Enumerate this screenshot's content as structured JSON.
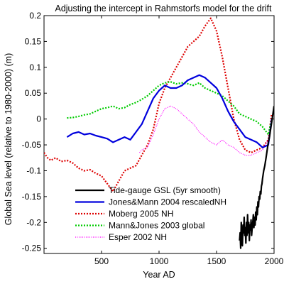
{
  "chart_data": {
    "type": "line",
    "title": "Adjusting the intercept in Rahmstorfs model for the drift",
    "xlabel": "Year AD",
    "ylabel": "Global Sea level (relative to 1980-2000) (m)",
    "xlim": [
      0,
      2000
    ],
    "ylim": [
      -0.26,
      0.2
    ],
    "xticks": [
      500,
      1000,
      1500,
      2000
    ],
    "xtick_labels": [
      "500",
      "1000",
      "1500",
      "2000"
    ],
    "yticks": [
      -0.25,
      -0.2,
      -0.15,
      -0.1,
      -0.05,
      0,
      0.05,
      0.1,
      0.15,
      0.2
    ],
    "ytick_labels": [
      "-0.25",
      "-0.2",
      "-0.15",
      "-0.1",
      "-0.05",
      "0",
      "0.05",
      "0.1",
      "0.15",
      "0.2"
    ],
    "grid": false,
    "legend_position": "bottom-center",
    "series": [
      {
        "name": "Tide-gauge GSL (5yr smooth)",
        "color": "#000000",
        "style": "solid",
        "width": 2.2,
        "x": [
          1700,
          1705,
          1710,
          1715,
          1720,
          1725,
          1730,
          1735,
          1740,
          1745,
          1750,
          1755,
          1760,
          1765,
          1770,
          1775,
          1780,
          1785,
          1790,
          1795,
          1800,
          1805,
          1810,
          1815,
          1820,
          1825,
          1830,
          1835,
          1840,
          1845,
          1850,
          1855,
          1860,
          1865,
          1870,
          1875,
          1880,
          1885,
          1890,
          1895,
          1900,
          1910,
          1920,
          1930,
          1940,
          1950,
          1960,
          1970,
          1980,
          1990,
          2000
        ],
        "y": [
          -0.235,
          -0.22,
          -0.25,
          -0.2,
          -0.23,
          -0.245,
          -0.205,
          -0.22,
          -0.19,
          -0.225,
          -0.21,
          -0.24,
          -0.2,
          -0.225,
          -0.185,
          -0.22,
          -0.2,
          -0.235,
          -0.205,
          -0.215,
          -0.195,
          -0.225,
          -0.21,
          -0.2,
          -0.185,
          -0.21,
          -0.19,
          -0.205,
          -0.18,
          -0.195,
          -0.17,
          -0.185,
          -0.16,
          -0.17,
          -0.15,
          -0.155,
          -0.14,
          -0.145,
          -0.13,
          -0.125,
          -0.115,
          -0.1,
          -0.09,
          -0.075,
          -0.06,
          -0.045,
          -0.035,
          -0.02,
          -0.005,
          0.01,
          0.025
        ]
      },
      {
        "name": "Jones&Mann 2004 rescaledNH",
        "color": "#0000dd",
        "style": "solid",
        "width": 2.2,
        "x": [
          200,
          250,
          300,
          350,
          400,
          450,
          500,
          550,
          600,
          650,
          700,
          750,
          800,
          850,
          900,
          950,
          1000,
          1050,
          1100,
          1150,
          1200,
          1250,
          1300,
          1350,
          1400,
          1450,
          1500,
          1550,
          1600,
          1650,
          1700,
          1750,
          1800,
          1850,
          1900,
          1950,
          1980
        ],
        "y": [
          -0.035,
          -0.028,
          -0.025,
          -0.03,
          -0.028,
          -0.032,
          -0.035,
          -0.038,
          -0.045,
          -0.04,
          -0.035,
          -0.04,
          -0.025,
          -0.01,
          0.015,
          0.04,
          0.055,
          0.065,
          0.06,
          0.06,
          0.065,
          0.075,
          0.08,
          0.085,
          0.08,
          0.07,
          0.06,
          0.04,
          0.015,
          -0.005,
          -0.02,
          -0.035,
          -0.04,
          -0.045,
          -0.055,
          -0.05,
          0.0
        ]
      },
      {
        "name": "Moberg 2005 NH",
        "color": "#dd0000",
        "style": "dotted",
        "width": 2.2,
        "x": [
          0,
          30,
          60,
          100,
          150,
          200,
          250,
          300,
          350,
          400,
          450,
          500,
          550,
          600,
          650,
          700,
          750,
          800,
          850,
          900,
          950,
          1000,
          1050,
          1100,
          1150,
          1200,
          1250,
          1300,
          1350,
          1400,
          1450,
          1500,
          1550,
          1600,
          1650,
          1700,
          1750,
          1800,
          1850,
          1900,
          1950,
          1979
        ],
        "y": [
          -0.065,
          -0.075,
          -0.08,
          -0.075,
          -0.082,
          -0.08,
          -0.085,
          -0.095,
          -0.1,
          -0.098,
          -0.105,
          -0.11,
          -0.125,
          -0.14,
          -0.12,
          -0.1,
          -0.095,
          -0.09,
          -0.07,
          -0.05,
          -0.02,
          0.03,
          0.06,
          0.08,
          0.1,
          0.12,
          0.14,
          0.15,
          0.16,
          0.18,
          0.195,
          0.17,
          0.12,
          0.06,
          0.0,
          -0.04,
          -0.06,
          -0.065,
          -0.06,
          -0.055,
          -0.04,
          0.01
        ]
      },
      {
        "name": "Mann&Jones 2003 global",
        "color": "#00cc00",
        "style": "dotted",
        "width": 2.2,
        "x": [
          200,
          250,
          300,
          350,
          400,
          450,
          500,
          550,
          600,
          650,
          700,
          750,
          800,
          850,
          900,
          950,
          1000,
          1050,
          1100,
          1150,
          1200,
          1250,
          1300,
          1350,
          1400,
          1450,
          1500,
          1550,
          1600,
          1650,
          1700,
          1750,
          1800,
          1850,
          1900,
          1950,
          1980
        ],
        "y": [
          0.002,
          0.003,
          0.005,
          0.008,
          0.01,
          0.015,
          0.02,
          0.022,
          0.025,
          0.02,
          0.022,
          0.028,
          0.032,
          0.038,
          0.045,
          0.055,
          0.065,
          0.07,
          0.072,
          0.068,
          0.07,
          0.068,
          0.065,
          0.07,
          0.06,
          0.055,
          0.05,
          0.045,
          0.035,
          0.025,
          0.01,
          0.005,
          0.0,
          -0.005,
          -0.015,
          -0.03,
          0.0
        ]
      },
      {
        "name": "Esper 2002 NH",
        "color": "#ff00ff",
        "style": "dotted",
        "width": 1.2,
        "x": [
          830,
          850,
          900,
          950,
          1000,
          1050,
          1100,
          1150,
          1200,
          1250,
          1300,
          1350,
          1400,
          1450,
          1500,
          1550,
          1600,
          1650,
          1700,
          1750,
          1800,
          1850,
          1900,
          1950,
          1980
        ],
        "y": [
          -0.065,
          -0.06,
          -0.055,
          -0.03,
          0.0,
          0.02,
          0.025,
          0.02,
          0.01,
          0.0,
          -0.01,
          -0.025,
          -0.035,
          -0.045,
          -0.05,
          -0.04,
          -0.05,
          -0.055,
          -0.065,
          -0.07,
          -0.07,
          -0.065,
          -0.06,
          -0.04,
          -0.005
        ]
      }
    ]
  }
}
